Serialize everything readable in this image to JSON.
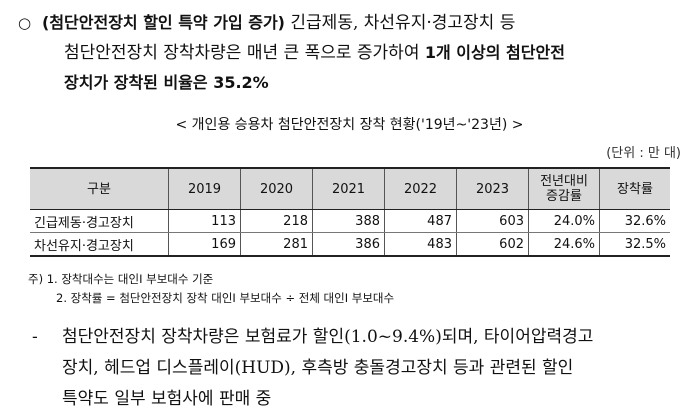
{
  "paragraph1": {
    "bullet": "○",
    "bold_lead": "(첨단안전장치 할인 특약 가입 증가)",
    "line1_rest": " 긴급제동, 차선유지·경고장치 등",
    "line2_text": "첨단안전장치 장착차량은 매년 큰 폭으로 증가하여 ",
    "line2_bold": "1개 이상의 첨단안전",
    "line3_bold": "장치가 장착된 비율은 35.2%"
  },
  "table_caption": "< 개인용 승용차 첨단안전장치 장착 현황('19년~'23년) >",
  "unit_label": "(단위 : 만 대)",
  "table": {
    "headers": [
      "구분",
      "2019",
      "2020",
      "2021",
      "2022",
      "2023",
      "전년대비 증감률",
      "장착률"
    ],
    "rows": [
      [
        "긴급제동·경고장치",
        "113",
        "218",
        "388",
        "487",
        "603",
        "24.0%",
        "32.6%"
      ],
      [
        "차선유지·경고장치",
        "169",
        "281",
        "386",
        "483",
        "602",
        "24.6%",
        "32.5%"
      ]
    ]
  },
  "notes": {
    "note1": "주) 1. 장착대수는 대인Ⅰ 부보대수 기준",
    "note2": "2. 장착률 = 첨단안전장치 장착 대인Ⅰ 부보대수 ÷ 전체 대인Ⅰ 부보대수"
  },
  "paragraph2": {
    "dash": "-",
    "line1": "첨단안전장치 장착차량은 보험료가 할인(1.0~9.4%)되며, 타이어압력경고",
    "line2": "장치, 헤드업 디스플레이(HUD), 후측방 충돌경고장치 등과 관련된 할인",
    "line3": "특약도 일부 보험사에 판매 중"
  }
}
